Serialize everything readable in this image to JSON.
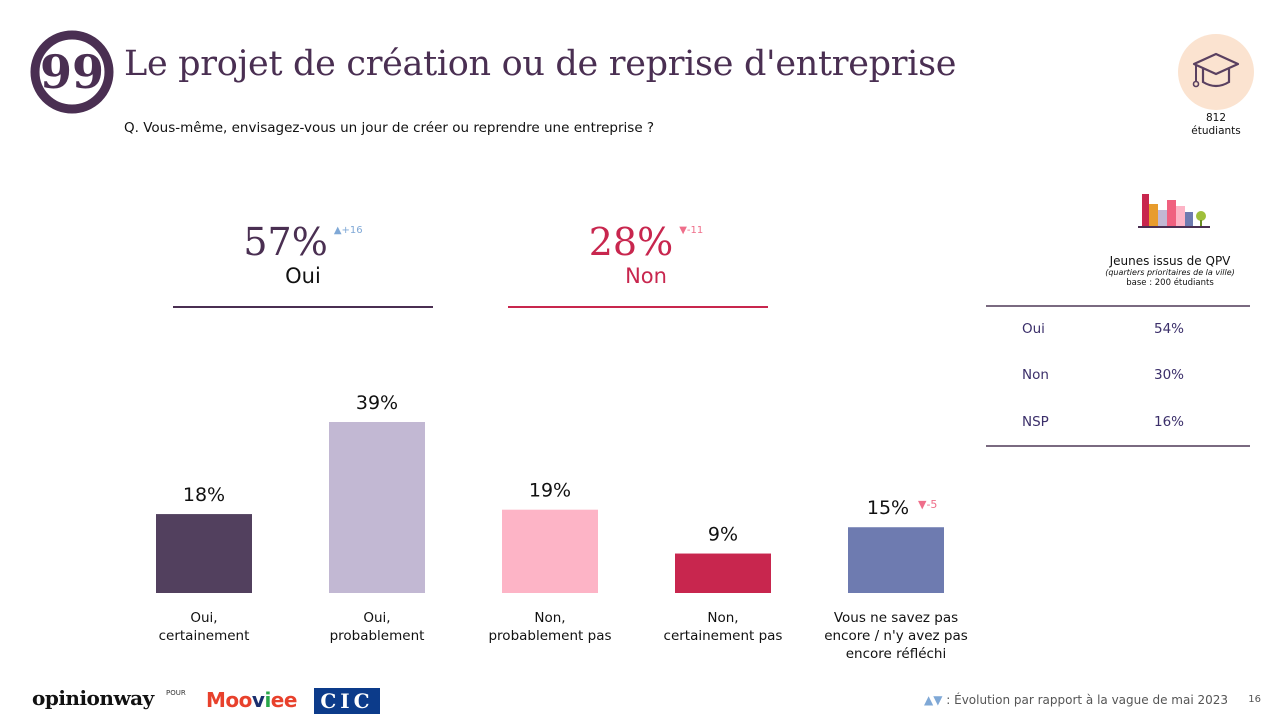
{
  "header": {
    "title": "Le projet de création ou de reprise d'entreprise",
    "question": "Q. Vous-même, envisagez-vous un jour de créer ou reprendre une entreprise ?"
  },
  "base": {
    "n": "812",
    "label": "étudiants",
    "icon": "graduation-cap-icon"
  },
  "summary": {
    "oui": {
      "pct": "57%",
      "evolution": "▲+16",
      "label": "Oui",
      "color": "#4a2f52",
      "evo_color": "#7fa8d6"
    },
    "non": {
      "pct": "28%",
      "evolution": "▼-11",
      "label": "Non",
      "color": "#c8264e",
      "evo_color": "#ef6e8a"
    }
  },
  "chart_data": {
    "type": "bar",
    "categories": [
      [
        "Oui,",
        "certainement"
      ],
      [
        "Oui,",
        "probablement"
      ],
      [
        "Non,",
        "probablement pas"
      ],
      [
        "Non,",
        "certainement pas"
      ],
      [
        "Vous ne savez pas",
        "encore / n'y avez pas",
        "encore réfléchi"
      ]
    ],
    "values": [
      18,
      39,
      19,
      9,
      15
    ],
    "value_labels": [
      "18%",
      "39%",
      "19%",
      "9%",
      "15%"
    ],
    "colors": [
      "#52405e",
      "#c2b8d3",
      "#fdb4c6",
      "#c8264e",
      "#6e7bb0"
    ],
    "evolutions": [
      "",
      "",
      "",
      "",
      "▼-5"
    ],
    "evolution_color": "#ef6e8a",
    "ylim": [
      0,
      39
    ]
  },
  "qpv": {
    "title": "Jeunes issus de QPV",
    "subtitle": "(quartiers prioritaires de la ville)",
    "base": "base : 200 étudiants",
    "rows": [
      {
        "label": "Oui",
        "value": "54%"
      },
      {
        "label": "Non",
        "value": "30%"
      },
      {
        "label": "NSP",
        "value": "16%"
      }
    ]
  },
  "footer": {
    "logo_opinionway": "opinionway",
    "pour": "POUR",
    "logo_mooviee": "Mooviee",
    "logo_cic": "CIC",
    "legend_symbols": "▲▼",
    "note": " : Évolution par rapport à la vague de mai 2023",
    "page": "16"
  }
}
